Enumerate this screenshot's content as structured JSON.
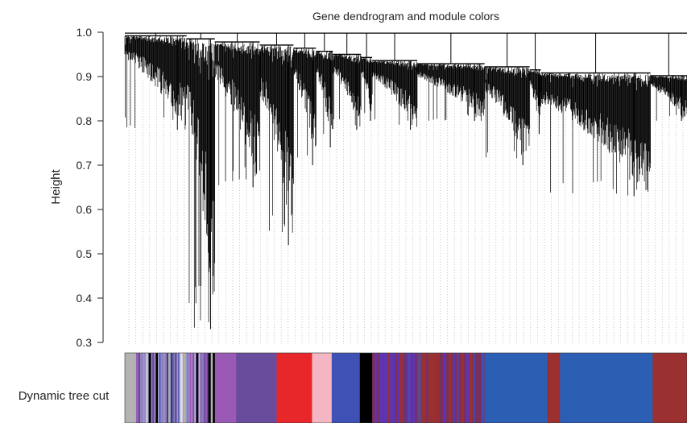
{
  "chart_data": {
    "type": "dendrogram",
    "title": "Gene dendrogram and module colors",
    "ylabel": "Height",
    "xlabel": "",
    "ylim": [
      0.3,
      1.0
    ],
    "yticks": [
      0.3,
      0.4,
      0.5,
      0.6,
      0.7,
      0.8,
      0.9,
      1.0
    ],
    "color_bar_label": "Dynamic tree cut",
    "branches": [
      {
        "from": 0.0,
        "to": 0.11,
        "min_height": 0.78,
        "color": "#b3b3b3"
      },
      {
        "from": 0.11,
        "to": 0.16,
        "min_height": 0.33,
        "color": "#8e7cc3"
      },
      {
        "from": 0.16,
        "to": 0.24,
        "min_height": 0.65,
        "color": "#9b59b6"
      },
      {
        "from": 0.24,
        "to": 0.3,
        "min_height": 0.52,
        "color": "#6a4c9c"
      },
      {
        "from": 0.3,
        "to": 0.34,
        "min_height": 0.7,
        "color": "#e8272a"
      },
      {
        "from": 0.34,
        "to": 0.37,
        "min_height": 0.74,
        "color": "#f4b6c2"
      },
      {
        "from": 0.37,
        "to": 0.42,
        "min_height": 0.78,
        "color": "#3f51b5"
      },
      {
        "from": 0.42,
        "to": 0.44,
        "min_height": 0.8,
        "color": "#000000"
      },
      {
        "from": 0.44,
        "to": 0.52,
        "min_height": 0.78,
        "color": "#5e35b1"
      },
      {
        "from": 0.52,
        "to": 0.64,
        "min_height": 0.8,
        "color": "#9b3030"
      },
      {
        "from": 0.64,
        "to": 0.72,
        "min_height": 0.7,
        "color": "#2b5fb4"
      },
      {
        "from": 0.72,
        "to": 0.74,
        "min_height": 0.77,
        "color": "#9b3030"
      },
      {
        "from": 0.74,
        "to": 0.935,
        "min_height": 0.63,
        "color": "#2b5fb4"
      },
      {
        "from": 0.935,
        "to": 1.0,
        "min_height": 0.8,
        "color": "#9b3030"
      }
    ],
    "module_colors": [
      {
        "start": 0.0,
        "end": 0.02,
        "color": "#b3b3b3"
      },
      {
        "start": 0.02,
        "end": 0.12,
        "color": "#a09bc8"
      },
      {
        "start": 0.12,
        "end": 0.15,
        "color": "#6a4c9c"
      },
      {
        "start": 0.15,
        "end": 0.16,
        "color": "#000000"
      },
      {
        "start": 0.16,
        "end": 0.198,
        "color": "#9b59b6"
      },
      {
        "start": 0.198,
        "end": 0.27,
        "color": "#6a4c9c"
      },
      {
        "start": 0.27,
        "end": 0.333,
        "color": "#e8272a"
      },
      {
        "start": 0.333,
        "end": 0.368,
        "color": "#f4b6c2"
      },
      {
        "start": 0.368,
        "end": 0.418,
        "color": "#3f51b5"
      },
      {
        "start": 0.418,
        "end": 0.442,
        "color": "#000000"
      },
      {
        "start": 0.442,
        "end": 0.52,
        "color": "#5e35b1"
      },
      {
        "start": 0.52,
        "end": 0.555,
        "color": "#9b3030"
      },
      {
        "start": 0.555,
        "end": 0.64,
        "color": "#7a2f5c"
      },
      {
        "start": 0.64,
        "end": 0.751,
        "color": "#2b5fb4"
      },
      {
        "start": 0.751,
        "end": 0.774,
        "color": "#9b3030"
      },
      {
        "start": 0.774,
        "end": 0.939,
        "color": "#2b5fb4"
      },
      {
        "start": 0.939,
        "end": 1.0,
        "color": "#9b3030"
      }
    ]
  }
}
